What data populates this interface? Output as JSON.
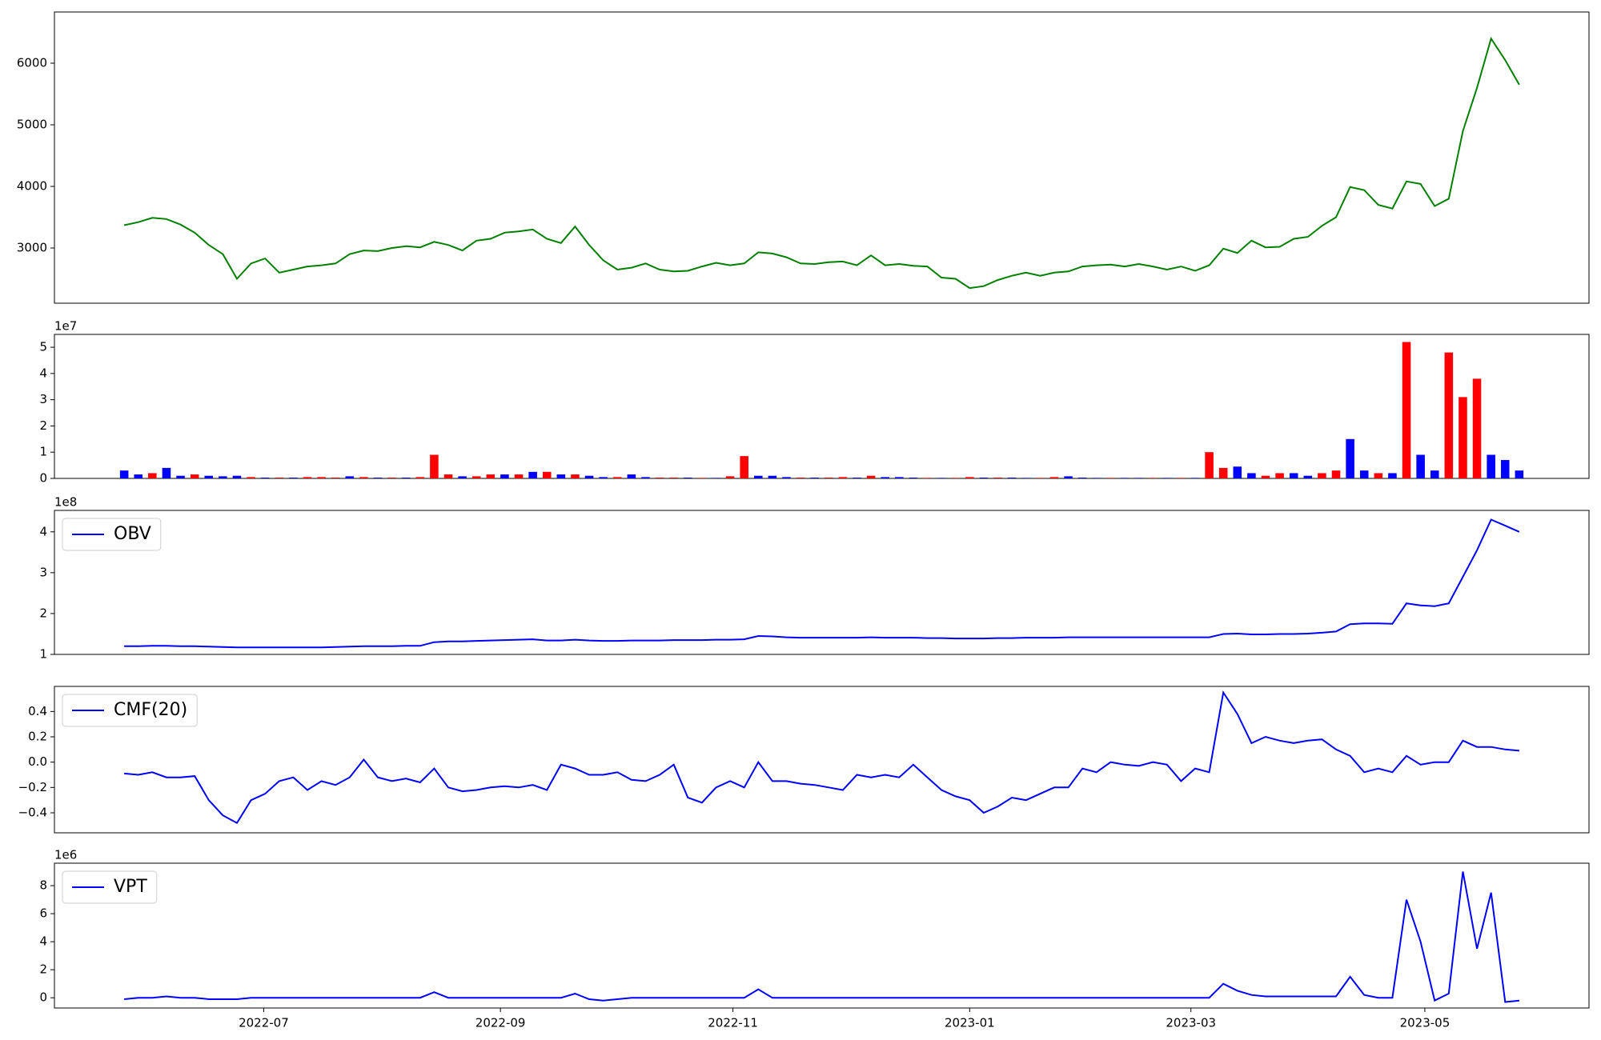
{
  "chart_data": [
    {
      "type": "line",
      "color": "#008000",
      "values": [
        3370,
        3420,
        3490,
        3470,
        3380,
        3250,
        3050,
        2900,
        2500,
        2750,
        2830,
        2600,
        2650,
        2700,
        2720,
        2750,
        2900,
        2960,
        2950,
        3000,
        3030,
        3010,
        3100,
        3050,
        2960,
        3120,
        3150,
        3250,
        3270,
        3300,
        3150,
        3080,
        3350,
        3050,
        2800,
        2650,
        2680,
        2750,
        2650,
        2620,
        2630,
        2700,
        2760,
        2720,
        2750,
        2930,
        2910,
        2850,
        2750,
        2740,
        2770,
        2780,
        2720,
        2880,
        2720,
        2740,
        2710,
        2700,
        2520,
        2500,
        2350,
        2380,
        2480,
        2550,
        2600,
        2550,
        2600,
        2620,
        2700,
        2720,
        2730,
        2700,
        2740,
        2700,
        2650,
        2700,
        2630,
        2720,
        2990,
        2920,
        3120,
        3010,
        3020,
        3150,
        3180,
        3360,
        3500,
        3990,
        3940,
        3700,
        3640,
        4080,
        4040,
        3680,
        3800,
        4900,
        5600,
        6400,
        6050,
        5650
      ],
      "xlim": [
        -4.95,
        103.95
      ],
      "ylim": [
        2104,
        6831
      ],
      "yticks": [
        3000,
        4000,
        5000,
        6000
      ]
    },
    {
      "type": "bar",
      "offset_label": "1e7",
      "values": [
        3000000.0,
        1500000.0,
        2000000.0,
        4000000.0,
        1000000.0,
        1500000.0,
        1000000.0,
        800000.0,
        1000000.0,
        500000.0,
        300000.0,
        300000.0,
        300000.0,
        500000.0,
        500000.0,
        300000.0,
        800000.0,
        500000.0,
        300000.0,
        300000.0,
        300000.0,
        500000.0,
        9000000.0,
        1500000.0,
        800000.0,
        800000.0,
        1500000.0,
        1500000.0,
        1500000.0,
        2500000.0,
        2500000.0,
        1500000.0,
        1500000.0,
        1000000.0,
        500000.0,
        500000.0,
        1500000.0,
        500000.0,
        300000.0,
        300000.0,
        300000.0,
        200000.0,
        200000.0,
        800000.0,
        8500000.0,
        1000000.0,
        1000000.0,
        500000.0,
        300000.0,
        300000.0,
        300000.0,
        500000.0,
        300000.0,
        1000000.0,
        500000.0,
        500000.0,
        300000.0,
        200000.0,
        200000.0,
        200000.0,
        500000.0,
        300000.0,
        300000.0,
        300000.0,
        200000.0,
        200000.0,
        500000.0,
        800000.0,
        300000.0,
        200000.0,
        200000.0,
        200000.0,
        200000.0,
        200000.0,
        200000.0,
        200000.0,
        200000.0,
        10000000.0,
        4000000.0,
        4500000.0,
        2000000.0,
        1000000.0,
        2000000.0,
        2000000.0,
        1000000.0,
        2000000.0,
        3000000.0,
        15000000.0,
        3000000.0,
        2000000.0,
        2000000.0,
        52000000.0,
        9000000.0,
        3000000.0,
        48000000.0,
        31000000.0,
        38000000.0,
        9000000.0,
        7000000.0,
        3000000.0
      ],
      "colors": [
        "blue",
        "blue",
        "red",
        "blue",
        "blue",
        "red",
        "blue",
        "blue",
        "blue",
        "red",
        "blue",
        "red",
        "blue",
        "red",
        "red",
        "red",
        "blue",
        "red",
        "blue",
        "red",
        "blue",
        "red",
        "red",
        "red",
        "blue",
        "red",
        "red",
        "blue",
        "red",
        "blue",
        "red",
        "blue",
        "red",
        "blue",
        "blue",
        "red",
        "blue",
        "blue",
        "red",
        "red",
        "blue",
        "red",
        "blue",
        "red",
        "red",
        "blue",
        "blue",
        "blue",
        "red",
        "blue",
        "red",
        "red",
        "blue",
        "red",
        "blue",
        "blue",
        "blue",
        "red",
        "blue",
        "red",
        "red",
        "blue",
        "red",
        "blue",
        "blue",
        "red",
        "red",
        "blue",
        "blue",
        "blue",
        "red",
        "blue",
        "blue",
        "red",
        "blue",
        "red",
        "blue",
        "red",
        "red",
        "blue",
        "blue",
        "red",
        "red",
        "blue",
        "blue",
        "red",
        "red",
        "blue",
        "blue",
        "red",
        "blue",
        "red",
        "blue",
        "blue",
        "red",
        "red",
        "red",
        "blue",
        "blue",
        "blue"
      ],
      "xlim": [
        -4.95,
        103.95
      ],
      "ylim": [
        0,
        54900000
      ],
      "yticks": [
        0,
        {
          "value": 10000000,
          "label": "1"
        },
        {
          "value": 20000000,
          "label": "2"
        },
        {
          "value": 30000000,
          "label": "3"
        },
        {
          "value": 40000000,
          "label": "4"
        },
        {
          "value": 50000000,
          "label": "5"
        }
      ]
    },
    {
      "type": "line",
      "offset_label": "1e8",
      "legend": "upper left",
      "series": [
        {
          "name": "OBV",
          "color": "#0000ff",
          "values": [
            120000000.0,
            120000000.0,
            121000000.0,
            121000000.0,
            120000000.0,
            120000000.0,
            119000000.0,
            118000000.0,
            117000000.0,
            117000000.0,
            117000000.0,
            117000000.0,
            117000000.0,
            117000000.0,
            117000000.0,
            118000000.0,
            119000000.0,
            120000000.0,
            120000000.0,
            120000000.0,
            121000000.0,
            121000000.0,
            130000000.0,
            132000000.0,
            132000000.0,
            133000000.0,
            134000000.0,
            135000000.0,
            136000000.0,
            137000000.0,
            134000000.0,
            134000000.0,
            136000000.0,
            134000000.0,
            133000000.0,
            133000000.0,
            134000000.0,
            134000000.0,
            134000000.0,
            135000000.0,
            135000000.0,
            135000000.0,
            136000000.0,
            136000000.0,
            137000000.0,
            145000000.0,
            144000000.0,
            142000000.0,
            141000000.0,
            141000000.0,
            141000000.0,
            141000000.0,
            141000000.0,
            142000000.0,
            141000000.0,
            141000000.0,
            141000000.0,
            140000000.0,
            140000000.0,
            139000000.0,
            139000000.0,
            139000000.0,
            140000000.0,
            140000000.0,
            141000000.0,
            141000000.0,
            141000000.0,
            142000000.0,
            142000000.0,
            142000000.0,
            142000000.0,
            142000000.0,
            142000000.0,
            142000000.0,
            142000000.0,
            142000000.0,
            142000000.0,
            142000000.0,
            150000000.0,
            151000000.0,
            149000000.0,
            149000000.0,
            150000000.0,
            150000000.0,
            151000000.0,
            153000000.0,
            156000000.0,
            174000000.0,
            176000000.0,
            176000000.0,
            175000000.0,
            225000000.0,
            220000000.0,
            218000000.0,
            225000000.0,
            290000000.0,
            355000000.0,
            430000000.0,
            415000000.0,
            400000000.0
          ]
        }
      ],
      "xlim": [
        -4.95,
        103.95
      ],
      "ylim": [
        100000000,
        452500000
      ],
      "yticks": [
        {
          "value": 100000000,
          "label": "1"
        },
        {
          "value": 200000000,
          "label": "2"
        },
        {
          "value": 300000000,
          "label": "3"
        },
        {
          "value": 400000000,
          "label": "4"
        }
      ]
    },
    {
      "type": "line",
      "legend": "upper left",
      "series": [
        {
          "name": "CMF(20)",
          "color": "#0000ff",
          "values": [
            -0.09,
            -0.1,
            -0.08,
            -0.12,
            -0.12,
            -0.11,
            -0.3,
            -0.42,
            -0.48,
            -0.3,
            -0.25,
            -0.15,
            -0.12,
            -0.22,
            -0.15,
            -0.18,
            -0.12,
            0.02,
            -0.12,
            -0.15,
            -0.13,
            -0.16,
            -0.05,
            -0.2,
            -0.23,
            -0.22,
            -0.2,
            -0.19,
            -0.2,
            -0.18,
            -0.22,
            -0.02,
            -0.05,
            -0.1,
            -0.1,
            -0.08,
            -0.14,
            -0.15,
            -0.1,
            -0.02,
            -0.28,
            -0.32,
            -0.2,
            -0.15,
            -0.2,
            0.0,
            -0.15,
            -0.15,
            -0.17,
            -0.18,
            -0.2,
            -0.22,
            -0.1,
            -0.12,
            -0.1,
            -0.12,
            -0.02,
            -0.12,
            -0.22,
            -0.27,
            -0.3,
            -0.4,
            -0.35,
            -0.28,
            -0.3,
            -0.25,
            -0.2,
            -0.2,
            -0.05,
            -0.08,
            0.0,
            -0.02,
            -0.03,
            0.0,
            -0.02,
            -0.15,
            -0.05,
            -0.08,
            0.55,
            0.38,
            0.15,
            0.2,
            0.17,
            0.15,
            0.17,
            0.18,
            0.1,
            0.05,
            -0.08,
            -0.05,
            -0.08,
            0.05,
            -0.02,
            0.0,
            0.0,
            0.17,
            0.12,
            0.12,
            0.1,
            0.09
          ]
        }
      ],
      "xlim": [
        -4.95,
        103.95
      ],
      "ylim": [
        -0.558,
        0.598
      ],
      "yticks": [
        {
          "value": -0.4,
          "label": "−0.4"
        },
        {
          "value": -0.2,
          "label": "−0.2"
        },
        {
          "value": 0,
          "label": "0.0"
        },
        0.2,
        0.4
      ]
    },
    {
      "type": "line",
      "offset_label": "1e6",
      "legend": "upper left",
      "series": [
        {
          "name": "VPT",
          "color": "#0000ff",
          "values": [
            -100000.0,
            0,
            0,
            100000.0,
            0,
            0,
            -100000.0,
            -100000.0,
            -100000.0,
            0,
            0,
            0,
            0,
            0,
            0,
            0,
            0,
            0,
            0,
            0,
            0,
            0,
            400000.0,
            0,
            0,
            0,
            0,
            0,
            0,
            0,
            0,
            0,
            300000.0,
            -100000.0,
            -200000.0,
            -100000.0,
            0,
            0,
            0,
            0,
            0,
            0,
            0,
            0,
            0,
            600000.0,
            0,
            0,
            0,
            0,
            0,
            0,
            0,
            0,
            0,
            0,
            0,
            0,
            0,
            0,
            0,
            0,
            0,
            0,
            0,
            0,
            0,
            0,
            0,
            0,
            0,
            0,
            0,
            0,
            0,
            0,
            0,
            0,
            1000000.0,
            500000.0,
            200000.0,
            100000.0,
            100000.0,
            100000.0,
            100000.0,
            100000.0,
            100000.0,
            1500000.0,
            200000.0,
            0,
            0,
            7000000.0,
            4000000.0,
            -200000.0,
            300000.0,
            9000000.0,
            3500000.0,
            7500000.0,
            -300000.0,
            -200000.0
          ]
        }
      ],
      "xlim": [
        -4.95,
        103.95
      ],
      "ylim": [
        -730000,
        9600000
      ],
      "yticks": [
        0,
        {
          "value": 2000000,
          "label": "2"
        },
        {
          "value": 4000000,
          "label": "4"
        },
        {
          "value": 6000000,
          "label": "6"
        },
        {
          "value": 8000000,
          "label": "8"
        }
      ],
      "xticks": [
        {
          "value": 9.9,
          "label": "2022-07"
        },
        {
          "value": 26.7,
          "label": "2022-09"
        },
        {
          "value": 43.2,
          "label": "2022-11"
        },
        {
          "value": 60.0,
          "label": "2023-01"
        },
        {
          "value": 75.7,
          "label": "2023-03"
        },
        {
          "value": 92.3,
          "label": "2023-05"
        }
      ]
    }
  ]
}
